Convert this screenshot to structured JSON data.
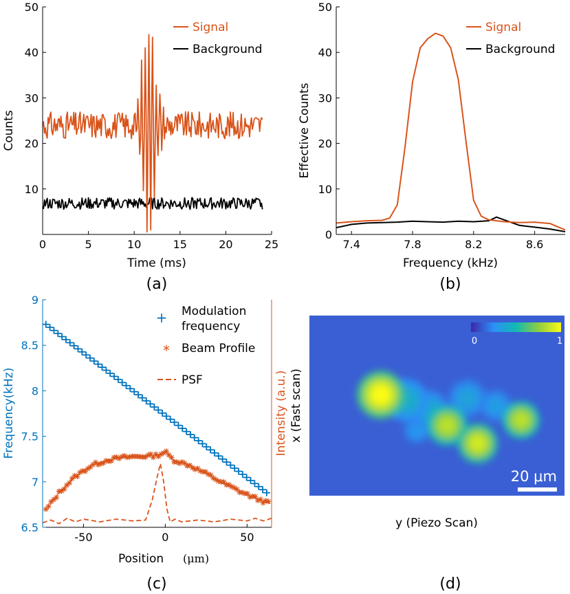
{
  "captions": {
    "a": "(a)",
    "b": "(b)",
    "c": "(c)",
    "d": "(d)"
  },
  "colors": {
    "signal": "#D95319",
    "background": "#000000",
    "blue": "#0072BD"
  },
  "chart_data": [
    {
      "id": "a",
      "type": "line",
      "xlabel": "Time (ms)",
      "ylabel": "Counts",
      "xlim": [
        0,
        25
      ],
      "ylim": [
        0,
        50
      ],
      "xticks": [
        0,
        5,
        10,
        15,
        20,
        25
      ],
      "yticks": [
        10,
        20,
        30,
        40,
        50
      ],
      "x_data_range": [
        0,
        24
      ],
      "legend_position": "top-right",
      "series": [
        {
          "name": "Signal",
          "color": "#D95319",
          "baseline": 24,
          "noise": 3,
          "burst": {
            "center": 11.6,
            "width": 1.0,
            "peak_amplitude": 22,
            "period": 0.4
          }
        },
        {
          "name": "Background",
          "color": "#000000",
          "baseline": 6.8,
          "noise": 1.3
        }
      ]
    },
    {
      "id": "b",
      "type": "line",
      "xlabel": "Frequency (kHz)",
      "ylabel": "Effective Counts",
      "xlim": [
        7.3,
        8.8
      ],
      "ylim": [
        0,
        50
      ],
      "xticks": [
        7.4,
        7.8,
        8.2,
        8.6
      ],
      "yticks": [
        0,
        10,
        20,
        30,
        40,
        50
      ],
      "legend_position": "top-right",
      "series": [
        {
          "name": "Signal",
          "color": "#D95319",
          "x": [
            7.3,
            7.4,
            7.5,
            7.6,
            7.65,
            7.7,
            7.75,
            7.8,
            7.85,
            7.9,
            7.95,
            8.0,
            8.05,
            8.1,
            8.15,
            8.2,
            8.25,
            8.3,
            8.35,
            8.4,
            8.5,
            8.6,
            8.7,
            8.8
          ],
          "y": [
            2.5,
            2.8,
            3.0,
            3.1,
            3.6,
            6.5,
            19.0,
            33.5,
            41.0,
            43.0,
            44.2,
            43.6,
            41.0,
            34.0,
            20.5,
            7.5,
            4.0,
            3.2,
            3.0,
            2.8,
            2.6,
            2.7,
            2.4,
            1.0
          ]
        },
        {
          "name": "Background",
          "color": "#000000",
          "x": [
            7.3,
            7.4,
            7.5,
            7.6,
            7.7,
            7.8,
            7.9,
            8.0,
            8.1,
            8.2,
            8.3,
            8.35,
            8.4,
            8.5,
            8.6,
            8.7,
            8.8
          ],
          "y": [
            1.5,
            2.2,
            2.5,
            2.6,
            2.7,
            2.9,
            2.8,
            2.7,
            2.9,
            2.8,
            3.0,
            3.8,
            3.2,
            2.0,
            1.6,
            1.2,
            0.6
          ]
        }
      ]
    },
    {
      "id": "c",
      "type": "line",
      "xlabel": "Position",
      "xlabel_unit": "(μm)",
      "ylabel_left": "Frequency(kHz)",
      "ylabel_right": "Intensity (a.u.)",
      "xlim": [
        -75,
        65
      ],
      "ylim_left": [
        6.5,
        9
      ],
      "xticks": [
        -50,
        0,
        50
      ],
      "yticks_left": [
        6.5,
        7,
        7.5,
        8,
        8.5,
        9
      ],
      "legend_position": "top-right",
      "series": [
        {
          "name": "Modulation frequency",
          "name_lines": [
            "Modulation",
            "frequency"
          ],
          "color": "#0072BD",
          "marker": "plus",
          "axis": "left",
          "x_range": [
            -73,
            62
          ],
          "y_range": [
            8.73,
            6.88
          ],
          "count": 56
        },
        {
          "name": "Beam Profile",
          "color": "#D95319",
          "marker": "asterisk",
          "axis": "right",
          "x": [
            -73,
            -65,
            -55,
            -45,
            -35,
            -25,
            -15,
            -5,
            0,
            5,
            15,
            25,
            35,
            45,
            55,
            64
          ],
          "y": [
            6.69,
            6.88,
            7.06,
            7.18,
            7.24,
            7.27,
            7.28,
            7.29,
            7.33,
            7.24,
            7.18,
            7.09,
            6.99,
            6.9,
            6.82,
            6.76
          ]
        },
        {
          "name": "PSF",
          "color": "#D95319",
          "dash": true,
          "axis": "right",
          "x": [
            -75,
            -70,
            -65,
            -60,
            -55,
            -50,
            -40,
            -30,
            -20,
            -12,
            -8,
            -5,
            -3,
            -1,
            1,
            3,
            6,
            10,
            20,
            30,
            40,
            50,
            55,
            60,
            65
          ],
          "y": [
            6.55,
            6.58,
            6.54,
            6.6,
            6.56,
            6.59,
            6.56,
            6.59,
            6.57,
            6.58,
            6.8,
            7.05,
            7.2,
            7.0,
            6.7,
            6.56,
            6.59,
            6.56,
            6.58,
            6.56,
            6.59,
            6.57,
            6.6,
            6.57,
            6.6
          ]
        }
      ]
    },
    {
      "id": "d",
      "type": "heatmap",
      "ylabel": "x (Fast scan)",
      "xlabel": "y (Piezo Scan)",
      "colorbar": {
        "min": "0",
        "max": "1"
      },
      "scalebar_label": "20 μm",
      "spots": [
        {
          "x": 0.28,
          "y": 0.44,
          "r": 0.09,
          "v": 1.0
        },
        {
          "x": 0.54,
          "y": 0.61,
          "r": 0.075,
          "v": 0.85
        },
        {
          "x": 0.66,
          "y": 0.71,
          "r": 0.075,
          "v": 0.9
        },
        {
          "x": 0.83,
          "y": 0.58,
          "r": 0.07,
          "v": 0.85
        },
        {
          "x": 0.38,
          "y": 0.47,
          "r": 0.08,
          "v": 0.42
        },
        {
          "x": 0.47,
          "y": 0.52,
          "r": 0.07,
          "v": 0.38
        },
        {
          "x": 0.62,
          "y": 0.46,
          "r": 0.07,
          "v": 0.36
        },
        {
          "x": 0.73,
          "y": 0.5,
          "r": 0.06,
          "v": 0.33
        },
        {
          "x": 0.42,
          "y": 0.64,
          "r": 0.05,
          "v": 0.3
        }
      ]
    }
  ]
}
